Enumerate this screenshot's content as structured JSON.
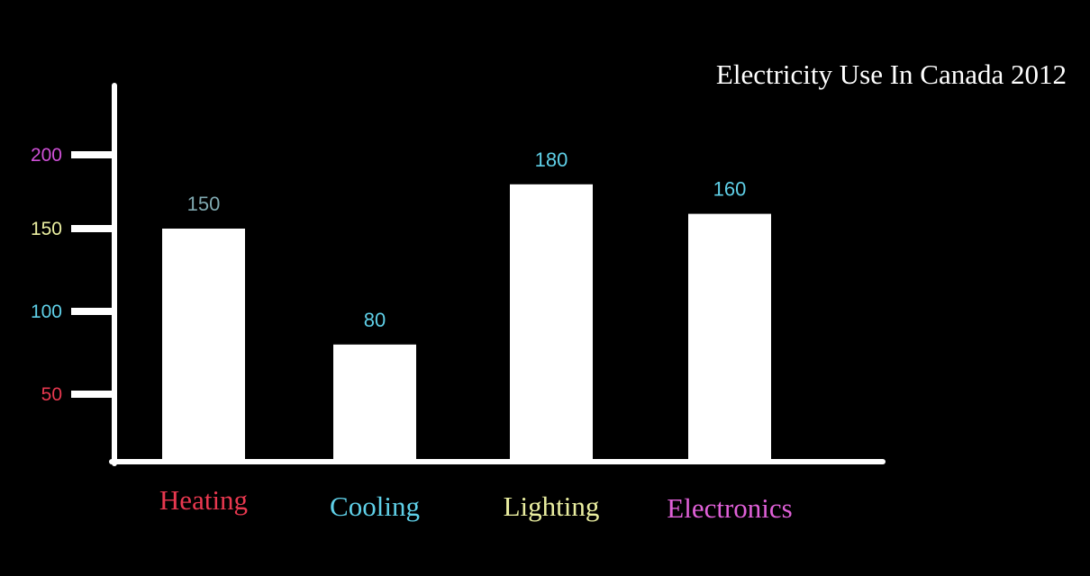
{
  "chart_data": {
    "type": "bar",
    "title": "Electricity Use In Canada 2012",
    "xlabel": "",
    "ylabel": "",
    "categories": [
      "Heating",
      "Cooling",
      "Lighting",
      "Electronics"
    ],
    "values": [
      150,
      80,
      180,
      160
    ],
    "value_labels": [
      "150",
      "80",
      "180",
      "160"
    ],
    "yticks": [
      50,
      100,
      150,
      200
    ],
    "ytick_labels": [
      "50",
      "100",
      "150",
      "200"
    ],
    "grid": false,
    "legend": "none",
    "colors": {
      "background": "#000000",
      "bars": "#ffffff",
      "axes": "#ffffff",
      "title": "#ffffff",
      "value_labels": [
        "#7fa8b0",
        "#5fd0e8",
        "#5fd0e8",
        "#5fd0e8"
      ],
      "category_labels": [
        "#e8384f",
        "#5fd0e8",
        "#eaeea0",
        "#e060d8"
      ],
      "ytick_labels": {
        "50": "#e8384f",
        "100": "#5fd0e8",
        "150": "#eaeea0",
        "200": "#d050d8"
      }
    }
  }
}
